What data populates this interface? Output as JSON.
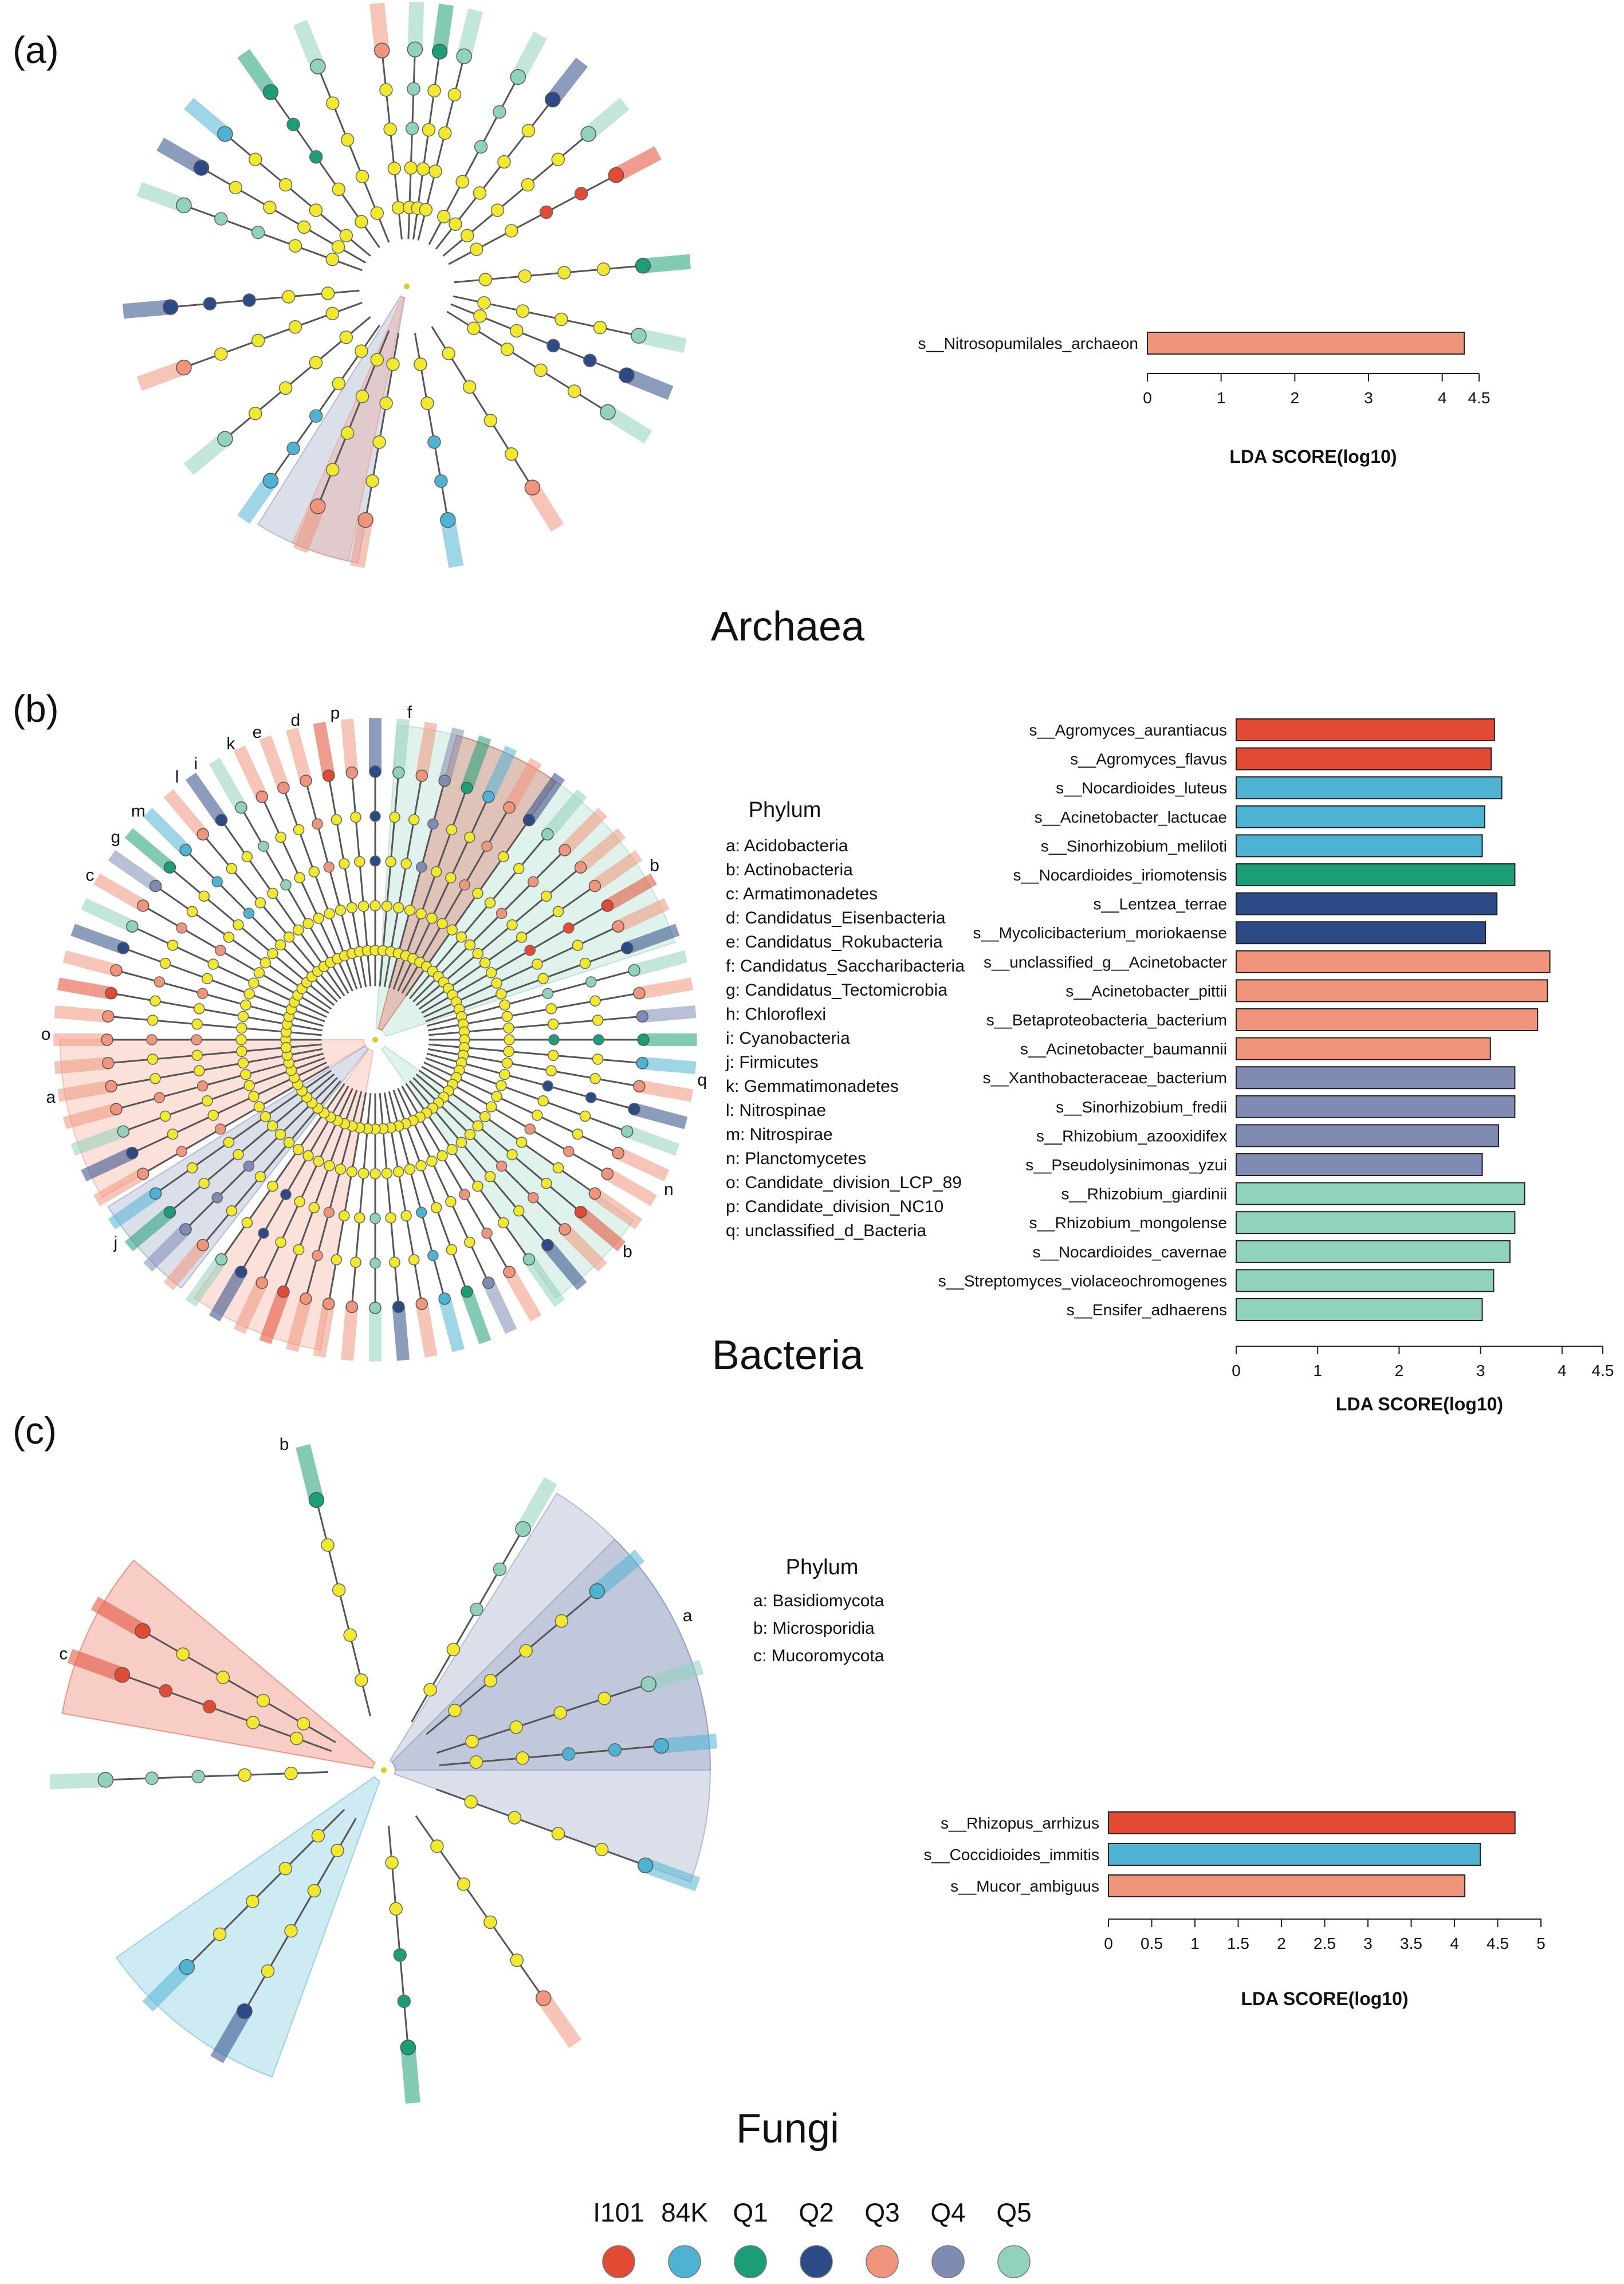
{
  "group_legend": [
    {
      "label": "I101",
      "color": "#e24a33"
    },
    {
      "label": "84K",
      "color": "#4eb3d3"
    },
    {
      "label": "Q1",
      "color": "#1b9e77"
    },
    {
      "label": "Q2",
      "color": "#2c4a86"
    },
    {
      "label": "Q3",
      "color": "#f0957b"
    },
    {
      "label": "Q4",
      "color": "#7f8bb3"
    },
    {
      "label": "Q5",
      "color": "#91d2bc"
    }
  ],
  "panels": [
    {
      "panel_label": "(a)",
      "section_title": "Archaea",
      "chart_data": {
        "type": "bar",
        "orientation": "horizontal",
        "title": "",
        "xlabel": "LDA SCORE(log10)",
        "xlim": [
          0,
          4.5
        ],
        "ticks": [
          "0",
          "1",
          "2",
          "3",
          "4",
          "4.5"
        ],
        "categories": [
          "s__Nitrosopumilales_archaeon"
        ],
        "values": [
          4.3
        ],
        "groups": [
          "Q3"
        ]
      },
      "phylum_legend": null
    },
    {
      "panel_label": "(b)",
      "section_title": "Bacteria",
      "chart_data": {
        "type": "bar",
        "orientation": "horizontal",
        "title": "",
        "xlabel": "LDA SCORE(log10)",
        "xlim": [
          0,
          4.5
        ],
        "ticks": [
          "0",
          "1",
          "2",
          "3",
          "4",
          "4.5"
        ],
        "categories": [
          "s__Agromyces_aurantiacus",
          "s__Agromyces_flavus",
          "s__Nocardioides_luteus",
          "s__Acinetobacter_lactucae",
          "s__Sinorhizobium_meliloti",
          "s__Nocardioides_iriomotensis",
          "s__Lentzea_terrae",
          "s__Mycolicibacterium_moriokaense",
          "s__unclassified_g__Acinetobacter",
          "s__Acinetobacter_pittii",
          "s__Betaproteobacteria_bacterium",
          "s__Acinetobacter_baumannii",
          "s__Xanthobacteraceae_bacterium",
          "s__Sinorhizobium_fredii",
          "s__Rhizobium_azooxidifex",
          "s__Pseudolysinimonas_yzui",
          "s__Rhizobium_giardinii",
          "s__Rhizobium_mongolense",
          "s__Nocardioides_cavernae",
          "s__Streptomyces_violaceochromogenes",
          "s__Ensifer_adhaerens"
        ],
        "values": [
          3.17,
          3.13,
          3.26,
          3.05,
          3.02,
          3.42,
          3.2,
          3.06,
          3.85,
          3.82,
          3.7,
          3.12,
          3.42,
          3.42,
          3.22,
          3.02,
          3.54,
          3.42,
          3.36,
          3.16,
          3.02
        ],
        "groups": [
          "I101",
          "I101",
          "84K",
          "84K",
          "84K",
          "Q1",
          "Q2",
          "Q2",
          "Q3",
          "Q3",
          "Q3",
          "Q3",
          "Q4",
          "Q4",
          "Q4",
          "Q4",
          "Q5",
          "Q5",
          "Q5",
          "Q5",
          "Q5"
        ]
      },
      "phylum_legend": {
        "title": "Phylum",
        "items": [
          "a: Acidobacteria",
          "b: Actinobacteria",
          "c: Armatimonadetes",
          "d: Candidatus_Eisenbacteria",
          "e: Candidatus_Rokubacteria",
          "f: Candidatus_Saccharibacteria",
          "g: Candidatus_Tectomicrobia",
          "h: Chloroflexi",
          "i: Cyanobacteria",
          "j: Firmicutes",
          "k: Gemmatimonadetes",
          "l: Nitrospinae",
          "m: Nitrospirae",
          "n: Planctomycetes",
          "o: Candidate_division_LCP_89",
          "p: Candidate_division_NC10",
          "q: unclassified_d_Bacteria"
        ]
      }
    },
    {
      "panel_label": "(c)",
      "section_title": "Fungi",
      "chart_data": {
        "type": "bar",
        "orientation": "horizontal",
        "title": "",
        "xlabel": "LDA SCORE(log10)",
        "xlim": [
          0,
          5
        ],
        "ticks": [
          "0",
          "0.5",
          "1",
          "1.5",
          "2",
          "2.5",
          "3",
          "3.5",
          "4",
          "4.5",
          "5"
        ],
        "categories": [
          "s__Rhizopus_arrhizus",
          "s__Coccidioides_immitis",
          "s__Mucor_ambiguus"
        ],
        "values": [
          4.7,
          4.3,
          4.12
        ],
        "groups": [
          "I101",
          "84K",
          "Q3"
        ]
      },
      "phylum_legend": {
        "title": "Phylum",
        "items": [
          "a: Basidiomycota",
          "b: Microsporidia",
          "c: Mucoromycota"
        ]
      }
    }
  ],
  "cladograms": {
    "a": {
      "clade_letters": [],
      "spokes": [
        {
          "angle": -160,
          "group": "Q5"
        },
        {
          "angle": -150,
          "group": "Q2"
        },
        {
          "angle": -140,
          "group": "84K"
        },
        {
          "angle": -125,
          "group": "Q1"
        },
        {
          "angle": -112,
          "group": "Q5"
        },
        {
          "angle": -96,
          "group": "Q3"
        },
        {
          "angle": -88,
          "group": "Q5"
        },
        {
          "angle": -82,
          "group": "Q1"
        },
        {
          "angle": -76,
          "group": "Q5"
        },
        {
          "angle": -62,
          "group": "Q5"
        },
        {
          "angle": -52,
          "group": "Q2"
        },
        {
          "angle": -40,
          "group": "Q5"
        },
        {
          "angle": -28,
          "group": "I101"
        },
        {
          "angle": -5,
          "group": "Q1"
        },
        {
          "angle": 12,
          "group": "Q5"
        },
        {
          "angle": 22,
          "group": "Q2"
        },
        {
          "angle": 32,
          "group": "Q5"
        },
        {
          "angle": 58,
          "group": "Q3"
        },
        {
          "angle": 80,
          "group": "84K"
        },
        {
          "angle": 100,
          "group": "Q3"
        },
        {
          "angle": 112,
          "group": "Q3"
        },
        {
          "angle": 125,
          "group": "84K"
        },
        {
          "angle": 140,
          "group": "Q5"
        },
        {
          "angle": 160,
          "group": "Q3"
        },
        {
          "angle": 175,
          "group": "Q2"
        }
      ],
      "sectors": [
        {
          "start": 100,
          "end": 122,
          "group": "Q4"
        },
        {
          "start": 102,
          "end": 114,
          "group": "Q3"
        }
      ]
    },
    "b": {
      "clade_letters": [
        {
          "letter": "a",
          "angle": 170
        },
        {
          "letter": "b",
          "angle": -32
        },
        {
          "letter": "c",
          "angle": -150
        },
        {
          "letter": "d",
          "angle": -104
        },
        {
          "letter": "e",
          "angle": -111
        },
        {
          "letter": "f",
          "angle": -84
        },
        {
          "letter": "g",
          "angle": -142
        },
        {
          "letter": "i",
          "angle": -123
        },
        {
          "letter": "j",
          "angle": 142
        },
        {
          "letter": "k",
          "angle": -116
        },
        {
          "letter": "l",
          "angle": -127
        },
        {
          "letter": "m",
          "angle": -136
        },
        {
          "letter": "n",
          "angle": 27
        },
        {
          "letter": "o",
          "angle": -179
        },
        {
          "letter": "p",
          "angle": -97
        },
        {
          "letter": "q",
          "angle": 7
        },
        {
          "letter": "b",
          "angle": 40
        }
      ],
      "sectors": [
        {
          "start": -86,
          "end": -18,
          "group": "Q5"
        },
        {
          "start": -75,
          "end": -55,
          "group": "I101"
        },
        {
          "start": 150,
          "end": 180,
          "group": "Q3"
        },
        {
          "start": 128,
          "end": 148,
          "group": "Q4"
        },
        {
          "start": 100,
          "end": 125,
          "group": "Q3"
        },
        {
          "start": 35,
          "end": 55,
          "group": "Q5"
        }
      ]
    },
    "c": {
      "clade_letters": [
        {
          "letter": "a",
          "angle": -27
        },
        {
          "letter": "b",
          "angle": -107
        },
        {
          "letter": "c",
          "angle": -160
        }
      ],
      "spokes": [
        {
          "angle": -160,
          "group": "I101"
        },
        {
          "angle": -150,
          "group": "I101"
        },
        {
          "angle": -104,
          "group": "Q1"
        },
        {
          "angle": -60,
          "group": "Q5"
        },
        {
          "angle": -40,
          "group": "84K"
        },
        {
          "angle": -18,
          "group": "Q5"
        },
        {
          "angle": -5,
          "group": "84K"
        },
        {
          "angle": 20,
          "group": "84K"
        },
        {
          "angle": 55,
          "group": "Q3"
        },
        {
          "angle": 85,
          "group": "Q1"
        },
        {
          "angle": 120,
          "group": "Q2"
        },
        {
          "angle": 135,
          "group": "84K"
        },
        {
          "angle": 178,
          "group": "Q5"
        }
      ],
      "sectors": [
        {
          "start": -58,
          "end": 20,
          "group": "Q4"
        },
        {
          "start": -45,
          "end": 0,
          "group": "Q4"
        },
        {
          "start": -170,
          "end": -140,
          "group": "I101"
        },
        {
          "start": 110,
          "end": 145,
          "group": "84K"
        }
      ]
    }
  }
}
